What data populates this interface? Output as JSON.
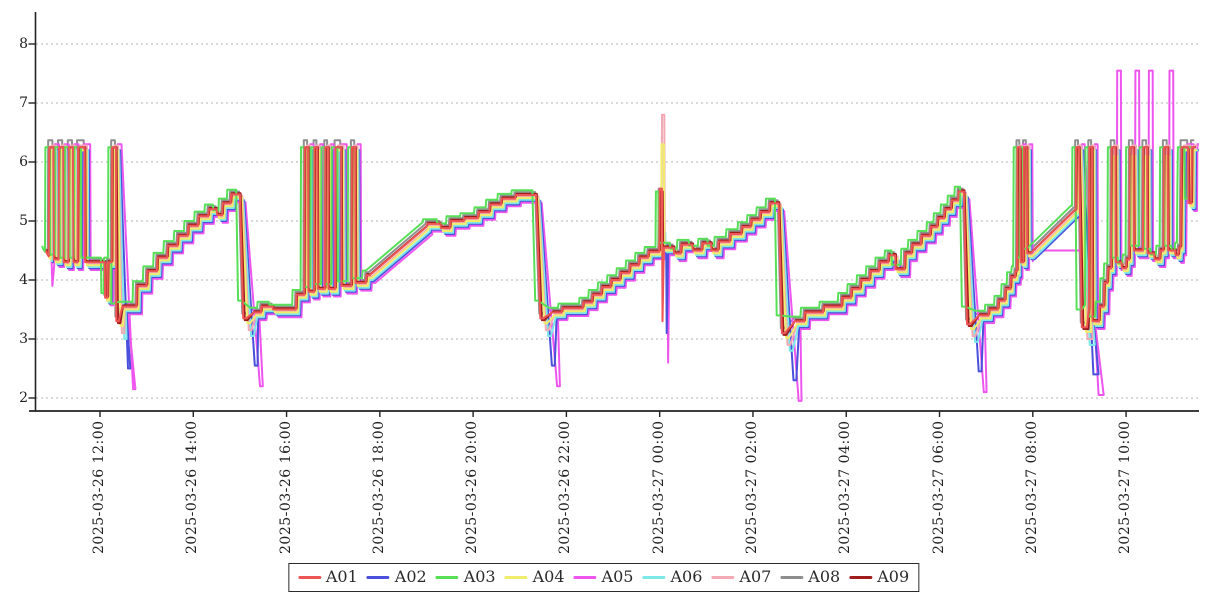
{
  "chart_data": {
    "type": "line",
    "title": "",
    "grid": "horizontal-dotted",
    "legend_position": "bottom-center",
    "x_unit": "hours since 2025-03-26 12:00",
    "ylim": [
      1.76,
      8.49
    ],
    "y_ticks": [
      2,
      3,
      4,
      5,
      6,
      7,
      8
    ],
    "x_ticks": [
      {
        "t": 0,
        "label": "2025-03-26 12:00"
      },
      {
        "t": 2,
        "label": "2025-03-26 14:00"
      },
      {
        "t": 4,
        "label": "2025-03-26 16:00"
      },
      {
        "t": 6,
        "label": "2025-03-26 18:00"
      },
      {
        "t": 8,
        "label": "2025-03-26 20:00"
      },
      {
        "t": 10,
        "label": "2025-03-26 22:00"
      },
      {
        "t": 12,
        "label": "2025-03-27 00:00"
      },
      {
        "t": 14,
        "label": "2025-03-27 02:00"
      },
      {
        "t": 16,
        "label": "2025-03-27 04:00"
      },
      {
        "t": 18,
        "label": "2025-03-27 06:00"
      },
      {
        "t": 20,
        "label": "2025-03-27 08:00"
      },
      {
        "t": 22,
        "label": "2025-03-27 10:00"
      }
    ],
    "point_tags_legend": {
      "s": "spike top",
      "m": "end-burst mega spike top",
      "c": "crash bottom",
      "d": "midnight up-spike top",
      "dd": "midnight down-spike bottom",
      "f": "diagonal fan segment",
      "p": "initial pre-dip"
    },
    "base_points": [
      [
        -1.16,
        4.5
      ],
      [
        -1.14,
        4.45,
        "p"
      ],
      [
        -1.1,
        4.4
      ],
      [
        -1.09,
        6.25,
        "s"
      ],
      [
        -1.0,
        6.25,
        "s"
      ],
      [
        -0.99,
        4.35
      ],
      [
        -0.89,
        4.35
      ],
      [
        -0.88,
        6.25,
        "s"
      ],
      [
        -0.79,
        6.25,
        "s"
      ],
      [
        -0.78,
        4.3
      ],
      [
        -0.68,
        4.3
      ],
      [
        -0.67,
        6.25,
        "s"
      ],
      [
        -0.58,
        6.25,
        "s"
      ],
      [
        -0.57,
        4.3
      ],
      [
        -0.48,
        4.3
      ],
      [
        -0.47,
        6.25,
        "s"
      ],
      [
        -0.33,
        6.25,
        "s"
      ],
      [
        -0.32,
        4.3
      ],
      [
        0.1,
        4.3
      ],
      [
        0.11,
        3.7
      ],
      [
        0.16,
        3.7
      ],
      [
        0.17,
        4.3
      ],
      [
        0.25,
        4.3
      ],
      [
        0.26,
        6.25,
        "s"
      ],
      [
        0.34,
        6.25,
        "s"
      ],
      [
        0.35,
        3.3,
        "c"
      ],
      [
        0.4,
        3.3,
        "c"
      ],
      [
        0.48,
        3.55
      ],
      [
        0.78,
        3.55
      ],
      [
        0.79,
        3.9
      ],
      [
        1.0,
        3.9
      ],
      [
        1.01,
        4.15
      ],
      [
        1.22,
        4.15
      ],
      [
        1.23,
        4.38
      ],
      [
        1.44,
        4.38
      ],
      [
        1.45,
        4.58
      ],
      [
        1.66,
        4.58
      ],
      [
        1.67,
        4.75
      ],
      [
        1.88,
        4.75
      ],
      [
        1.89,
        4.92
      ],
      [
        2.1,
        4.92
      ],
      [
        2.11,
        5.08
      ],
      [
        2.32,
        5.08
      ],
      [
        2.33,
        5.2
      ],
      [
        2.5,
        5.2
      ],
      [
        2.51,
        5.1
      ],
      [
        2.62,
        5.1
      ],
      [
        2.63,
        5.3
      ],
      [
        2.8,
        5.3
      ],
      [
        2.81,
        5.45
      ],
      [
        3.0,
        5.45
      ],
      [
        3.07,
        3.35,
        "c"
      ],
      [
        3.13,
        3.35,
        "c"
      ],
      [
        3.3,
        3.45
      ],
      [
        3.45,
        3.45
      ],
      [
        3.46,
        3.55
      ],
      [
        3.7,
        3.55
      ],
      [
        3.71,
        3.5
      ],
      [
        4.2,
        3.5
      ],
      [
        4.21,
        3.75
      ],
      [
        4.38,
        3.75
      ],
      [
        4.39,
        6.25,
        "s"
      ],
      [
        4.46,
        6.25,
        "s"
      ],
      [
        4.47,
        3.8
      ],
      [
        4.59,
        3.8
      ],
      [
        4.6,
        6.25,
        "s"
      ],
      [
        4.66,
        6.25,
        "s"
      ],
      [
        4.67,
        3.85
      ],
      [
        4.82,
        3.85
      ],
      [
        4.83,
        6.25,
        "s"
      ],
      [
        4.89,
        6.25,
        "s"
      ],
      [
        4.9,
        3.85
      ],
      [
        5.04,
        3.85
      ],
      [
        5.05,
        6.25,
        "s"
      ],
      [
        5.17,
        6.25,
        "s"
      ],
      [
        5.18,
        3.9
      ],
      [
        5.39,
        3.9
      ],
      [
        5.4,
        6.25,
        "s"
      ],
      [
        5.47,
        6.25,
        "s"
      ],
      [
        5.48,
        3.95
      ],
      [
        5.7,
        3.95
      ],
      [
        5.71,
        4.08
      ],
      [
        5.78,
        4.08
      ],
      [
        7.0,
        4.9
      ],
      [
        7.01,
        4.95
      ],
      [
        7.3,
        4.95
      ],
      [
        7.31,
        4.88
      ],
      [
        7.5,
        4.88
      ],
      [
        7.51,
        5.0
      ],
      [
        7.8,
        5.0
      ],
      [
        7.81,
        5.05
      ],
      [
        8.1,
        5.05
      ],
      [
        8.11,
        5.15
      ],
      [
        8.35,
        5.15
      ],
      [
        8.36,
        5.28
      ],
      [
        8.6,
        5.28
      ],
      [
        8.61,
        5.38
      ],
      [
        8.9,
        5.38
      ],
      [
        8.91,
        5.44
      ],
      [
        9.35,
        5.44
      ],
      [
        9.44,
        3.35,
        "c"
      ],
      [
        9.5,
        3.35,
        "c"
      ],
      [
        9.7,
        3.45
      ],
      [
        9.9,
        3.45
      ],
      [
        9.91,
        3.52
      ],
      [
        10.35,
        3.52
      ],
      [
        10.36,
        3.62
      ],
      [
        10.55,
        3.62
      ],
      [
        10.56,
        3.75
      ],
      [
        10.75,
        3.75
      ],
      [
        10.76,
        3.88
      ],
      [
        10.95,
        3.88
      ],
      [
        10.96,
        4.0
      ],
      [
        11.15,
        4.0
      ],
      [
        11.16,
        4.12
      ],
      [
        11.35,
        4.12
      ],
      [
        11.36,
        4.25
      ],
      [
        11.55,
        4.25
      ],
      [
        11.56,
        4.38
      ],
      [
        11.75,
        4.38
      ],
      [
        11.76,
        4.48
      ],
      [
        11.99,
        4.48
      ],
      [
        12.0,
        5.5,
        "d"
      ],
      [
        12.05,
        5.5,
        "d"
      ],
      [
        12.06,
        3.3,
        "dd"
      ],
      [
        12.09,
        4.55
      ],
      [
        12.3,
        4.55
      ],
      [
        12.31,
        4.45
      ],
      [
        12.45,
        4.45
      ],
      [
        12.46,
        4.6
      ],
      [
        12.7,
        4.6
      ],
      [
        12.71,
        4.5
      ],
      [
        12.9,
        4.5
      ],
      [
        12.91,
        4.62
      ],
      [
        13.1,
        4.62
      ],
      [
        13.11,
        4.5
      ],
      [
        13.25,
        4.5
      ],
      [
        13.26,
        4.65
      ],
      [
        13.5,
        4.65
      ],
      [
        13.51,
        4.78
      ],
      [
        13.75,
        4.78
      ],
      [
        13.76,
        4.9
      ],
      [
        13.95,
        4.9
      ],
      [
        13.96,
        5.02
      ],
      [
        14.15,
        5.02
      ],
      [
        14.16,
        5.15
      ],
      [
        14.35,
        5.15
      ],
      [
        14.36,
        5.3
      ],
      [
        14.55,
        5.3
      ],
      [
        14.62,
        3.1,
        "c"
      ],
      [
        14.68,
        3.1,
        "c"
      ],
      [
        14.9,
        3.3
      ],
      [
        15.1,
        3.3
      ],
      [
        15.11,
        3.45
      ],
      [
        15.5,
        3.45
      ],
      [
        15.51,
        3.55
      ],
      [
        15.9,
        3.55
      ],
      [
        15.91,
        3.7
      ],
      [
        16.1,
        3.7
      ],
      [
        16.11,
        3.85
      ],
      [
        16.3,
        3.85
      ],
      [
        16.31,
        4.0
      ],
      [
        16.5,
        4.0
      ],
      [
        16.51,
        4.15
      ],
      [
        16.7,
        4.15
      ],
      [
        16.71,
        4.3
      ],
      [
        16.9,
        4.3
      ],
      [
        16.91,
        4.42
      ],
      [
        17.05,
        4.42
      ],
      [
        17.06,
        4.18
      ],
      [
        17.25,
        4.18
      ],
      [
        17.26,
        4.45
      ],
      [
        17.4,
        4.45
      ],
      [
        17.41,
        4.6
      ],
      [
        17.6,
        4.6
      ],
      [
        17.61,
        4.75
      ],
      [
        17.8,
        4.75
      ],
      [
        17.81,
        4.9
      ],
      [
        17.95,
        4.9
      ],
      [
        17.96,
        5.05
      ],
      [
        18.1,
        5.05
      ],
      [
        18.11,
        5.2
      ],
      [
        18.25,
        5.2
      ],
      [
        18.26,
        5.35
      ],
      [
        18.4,
        5.35
      ],
      [
        18.41,
        5.5
      ],
      [
        18.52,
        5.5
      ],
      [
        18.59,
        3.25,
        "c"
      ],
      [
        18.65,
        3.25,
        "c"
      ],
      [
        18.85,
        3.4
      ],
      [
        19.05,
        3.4
      ],
      [
        19.06,
        3.5
      ],
      [
        19.25,
        3.5
      ],
      [
        19.26,
        3.65
      ],
      [
        19.4,
        3.65
      ],
      [
        19.41,
        3.85
      ],
      [
        19.52,
        3.85
      ],
      [
        19.53,
        4.05
      ],
      [
        19.62,
        4.05
      ],
      [
        19.63,
        4.15
      ],
      [
        19.66,
        4.15
      ],
      [
        19.67,
        6.25,
        "s"
      ],
      [
        19.73,
        6.25,
        "s"
      ],
      [
        19.74,
        4.3
      ],
      [
        19.8,
        4.3
      ],
      [
        19.81,
        6.25,
        "s"
      ],
      [
        19.87,
        6.25,
        "s"
      ],
      [
        19.88,
        4.45
      ],
      [
        19.95,
        4.45,
        "f"
      ],
      [
        20.9,
        5.18,
        "f"
      ],
      [
        20.92,
        5.18
      ],
      [
        20.93,
        6.25,
        "s"
      ],
      [
        20.99,
        6.25,
        "s"
      ],
      [
        21.05,
        3.2,
        "c"
      ],
      [
        21.16,
        3.2,
        "c"
      ],
      [
        21.2,
        3.5
      ],
      [
        21.21,
        6.25,
        "s"
      ],
      [
        21.27,
        6.25,
        "s"
      ],
      [
        21.28,
        3.3
      ],
      [
        21.42,
        3.3
      ],
      [
        21.43,
        3.55
      ],
      [
        21.52,
        3.55
      ],
      [
        21.53,
        3.95
      ],
      [
        21.6,
        3.95
      ],
      [
        21.61,
        4.2
      ],
      [
        21.68,
        4.2
      ],
      [
        21.69,
        6.25,
        "m"
      ],
      [
        21.77,
        6.25,
        "m"
      ],
      [
        21.78,
        4.3
      ],
      [
        21.9,
        4.3
      ],
      [
        21.91,
        4.2
      ],
      [
        22.0,
        4.2
      ],
      [
        22.01,
        4.35
      ],
      [
        22.07,
        4.35
      ],
      [
        22.08,
        6.25,
        "m"
      ],
      [
        22.16,
        6.25,
        "m"
      ],
      [
        22.17,
        4.5
      ],
      [
        22.36,
        4.5
      ],
      [
        22.37,
        6.25,
        "m"
      ],
      [
        22.45,
        6.25,
        "m"
      ],
      [
        22.46,
        4.45
      ],
      [
        22.6,
        4.45
      ],
      [
        22.61,
        4.35
      ],
      [
        22.72,
        4.35
      ],
      [
        22.73,
        4.5
      ],
      [
        22.8,
        4.5
      ],
      [
        22.81,
        6.25,
        "m"
      ],
      [
        22.89,
        6.25,
        "m"
      ],
      [
        22.9,
        4.5
      ],
      [
        23.05,
        4.5
      ],
      [
        23.06,
        4.42
      ],
      [
        23.12,
        4.42
      ],
      [
        23.13,
        4.55
      ],
      [
        23.17,
        4.55
      ],
      [
        23.18,
        5.5
      ],
      [
        23.19,
        6.25,
        "s"
      ],
      [
        23.33,
        6.25,
        "s"
      ],
      [
        23.34,
        5.3
      ],
      [
        23.4,
        5.3
      ],
      [
        23.41,
        6.2,
        "s"
      ],
      [
        23.48,
        6.2,
        "s"
      ]
    ],
    "series": [
      {
        "name": "A01",
        "color": "#ee5555",
        "dt": 0,
        "dv": 0,
        "dt_crash": 0,
        "crash_dv": 0,
        "spike_top": 6.25,
        "mega_top": 6.25,
        "midnight_top": 5.55,
        "midnight_down": 3.3
      },
      {
        "name": "A02",
        "color": "#4a50dc",
        "dt": 0.09,
        "dv": -0.1,
        "dt_crash": 0.16,
        "crash_dv": -0.8,
        "spike_top": 6.2,
        "mega_top": 6.2,
        "midnight_top": 4.6,
        "midnight_down": 3.1
      },
      {
        "name": "A03",
        "color": "#57e057",
        "dt": -0.08,
        "dv": 0.08,
        "dt_crash": -0.03,
        "crash_dv": 0.3,
        "spike_top": 6.25,
        "mega_top": 6.25,
        "midnight_top": 5.5,
        "midnight_down": 4.6
      },
      {
        "name": "A04",
        "color": "#f0ec6c",
        "dt": 0.04,
        "dv": -0.05,
        "dt_crash": 0.05,
        "crash_dv": -0.08,
        "spike_top": 6.2,
        "mega_top": 6.1,
        "midnight_top": 6.3,
        "midnight_down": 4.5
      },
      {
        "name": "A05",
        "color": "#ee55ee",
        "dt": 0.12,
        "dv": -0.13,
        "dt_crash": 0.24,
        "crash_dv": -1.15,
        "spike_top": 6.3,
        "mega_top": 7.55,
        "midnight_top": 4.5,
        "midnight_down": 2.6,
        "fan_flat": 4.5,
        "predip": 3.9
      },
      {
        "name": "A06",
        "color": "#7de8e8",
        "dt": 0.07,
        "dv": -0.08,
        "dt_crash": 0.1,
        "crash_dv": -0.3,
        "spike_top": 6.2,
        "mega_top": 6.2,
        "midnight_top": 4.8,
        "midnight_down": 4.5
      },
      {
        "name": "A07",
        "color": "#f2a9b4",
        "dt": 0.05,
        "dv": -0.02,
        "dt_crash": 0.07,
        "crash_dv": -0.2,
        "spike_top": 6.28,
        "mega_top": 6.28,
        "midnight_top": 6.8,
        "midnight_down": 4.55
      },
      {
        "name": "A08",
        "color": "#8e8e8e",
        "dt": -0.02,
        "dv": 0.05,
        "dt_crash": 0,
        "crash_dv": 0.08,
        "spike_top": 6.37,
        "mega_top": 6.37,
        "midnight_top": 5.55,
        "midnight_down": 4.55
      },
      {
        "name": "A09",
        "color": "#9e1c1c",
        "dt": 0.015,
        "dv": 0.02,
        "dt_crash": 0.02,
        "crash_dv": -0.03,
        "spike_top": 6.25,
        "mega_top": 6.25,
        "midnight_top": 5.5,
        "midnight_down": 4.5
      }
    ],
    "draw_order": [
      "A08",
      "A05",
      "A02",
      "A06",
      "A07",
      "A04",
      "A09",
      "A03",
      "A01"
    ],
    "legend_labels": [
      "A01",
      "A02",
      "A03",
      "A04",
      "A05",
      "A06",
      "A07",
      "A08",
      "A09"
    ]
  },
  "layout_colors": {
    "axis": "#222222",
    "grid": "#b3b3b3",
    "tick_text": "#222222",
    "legend_border": "#2b2b2b",
    "background": "#ffffff"
  }
}
